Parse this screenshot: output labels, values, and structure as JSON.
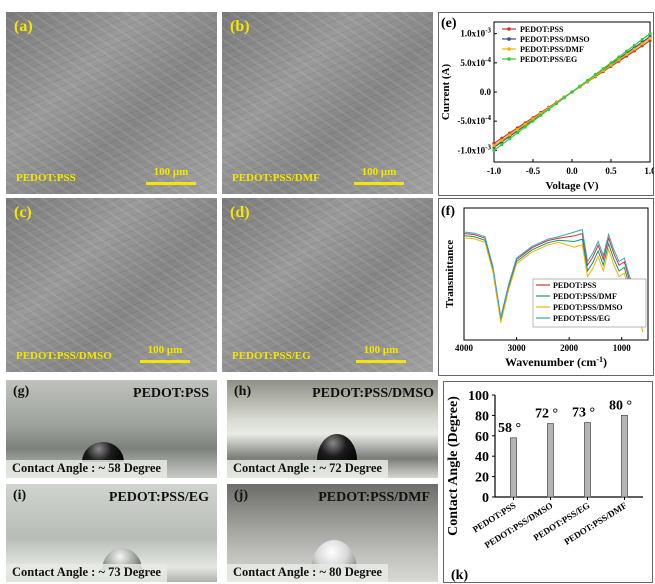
{
  "sem_panels": [
    {
      "letter": "(a)",
      "name": "PEDOT:PSS",
      "scale": "100 μm"
    },
    {
      "letter": "(b)",
      "name": "PEDOT:PSS/DMF",
      "scale": "100 μm"
    },
    {
      "letter": "(c)",
      "name": "PEDOT:PSS/DMSO",
      "scale": "100 μm"
    },
    {
      "letter": "(d)",
      "name": "PEDOT:PSS/EG",
      "scale": "100 μm"
    }
  ],
  "photo_panels": [
    {
      "letter": "(g)",
      "name": "PEDOT:PSS",
      "caption": "Contact Angle : ~ 58 Degree"
    },
    {
      "letter": "(h)",
      "name": "PEDOT:PSS/DMSO",
      "caption": "Contact Angle : ~ 72 Degree"
    },
    {
      "letter": "(i)",
      "name": "PEDOT:PSS/EG",
      "caption": "Contact Angle : ~ 73 Degree"
    },
    {
      "letter": "(j)",
      "name": "PEDOT:PSS/DMF",
      "caption": "Contact Angle : ~ 80 Degree"
    }
  ],
  "chart_data": [
    {
      "panel": "(e)",
      "type": "line",
      "xlabel": "Voltage (V)",
      "ylabel": "Current (A)",
      "xlim": [
        -1.0,
        1.0
      ],
      "ylim": [
        -0.0012,
        0.0012
      ],
      "xticks": [
        "-1.0",
        "-0.5",
        "0.0",
        "0.5",
        "1.0"
      ],
      "yticks": [
        "1.0x10-3",
        "5.0x10-4",
        "0.0",
        "-5.0x10-4",
        "-1.0x10-3"
      ],
      "legend_position": "top-left",
      "series": [
        {
          "name": "PEDOT:PSS",
          "color": "#c0392b",
          "x": [
            -1.0,
            1.0
          ],
          "y": [
            -0.00088,
            0.00088
          ]
        },
        {
          "name": "PEDOT:PSS/DMSO",
          "color": "#3a4a8c",
          "x": [
            -1.0,
            1.0
          ],
          "y": [
            -0.00095,
            0.00095
          ]
        },
        {
          "name": "PEDOT:PSS/DMF",
          "color": "#f0b400",
          "x": [
            -1.0,
            1.0
          ],
          "y": [
            -0.00092,
            0.00092
          ]
        },
        {
          "name": "PEDOT:PSS/EG",
          "color": "#2ecc40",
          "x": [
            -1.0,
            1.0
          ],
          "y": [
            -0.001,
            0.001
          ]
        }
      ]
    },
    {
      "panel": "(f)",
      "type": "line",
      "xlabel": "Wavenumber (cm-1)",
      "ylabel": "Transmittance",
      "xlim": [
        4000,
        500
      ],
      "xticks": [
        "4000",
        "3000",
        "2000",
        "1000"
      ],
      "legend_position": "bottom-right",
      "series": [
        {
          "name": "PEDOT:PSS",
          "color": "#c0392b"
        },
        {
          "name": "PEDOT:PSS/DMF",
          "color": "#1e8f6f"
        },
        {
          "name": "PEDOT:PSS/DMSO",
          "color": "#f0b400"
        },
        {
          "name": "PEDOT:PSS/EG",
          "color": "#3aa0c8"
        }
      ]
    },
    {
      "panel": "(k)",
      "type": "bar",
      "ylabel": "Contact Angle (Degree)",
      "ylim": [
        0,
        100
      ],
      "yticks": [
        "100",
        "80",
        "60",
        "40",
        "20",
        "0"
      ],
      "categories": [
        "PEDOT:PSS",
        "PEDOT:PSS/DMSO",
        "PEDOT:PSS/EG",
        "PEDOT:PSS/DMF"
      ],
      "values": [
        58,
        72,
        73,
        80
      ],
      "value_labels": [
        "58 °",
        "72 °",
        "73 °",
        "80 °"
      ],
      "bar_color": "#b5b5b5"
    }
  ]
}
